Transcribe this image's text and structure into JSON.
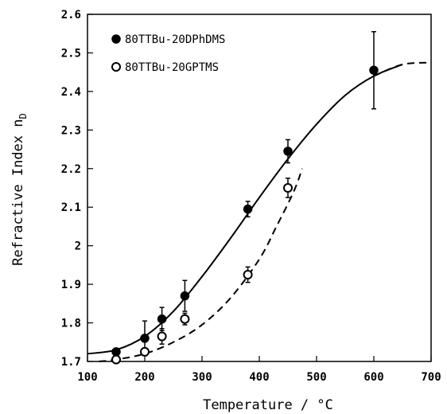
{
  "chart_data": {
    "type": "scatter",
    "xlabel": "Temperature / °C",
    "ylabel": "Refractive Index n",
    "ylabel_subscript": "D",
    "xlim": [
      100,
      700
    ],
    "ylim": [
      1.7,
      2.6
    ],
    "xticks": [
      100,
      200,
      300,
      400,
      500,
      600,
      700
    ],
    "yticks": [
      1.7,
      1.8,
      1.9,
      2.0,
      2.1,
      2.2,
      2.3,
      2.4,
      2.5,
      2.6
    ],
    "ytick_labels": [
      "1.7",
      "1.8",
      "1.9",
      "2",
      "2.1",
      "2.2",
      "2.3",
      "2.4",
      "2.5",
      "2.6"
    ],
    "xtick_labels": [
      "100",
      "200",
      "300",
      "400",
      "500",
      "600",
      "700"
    ],
    "legend_position": "top-left",
    "series": [
      {
        "name": "80TTBu-20DPhDMS",
        "marker": "filled-circle",
        "fit_line": "solid",
        "color": "#000000",
        "points": [
          {
            "x": 150,
            "y": 1.725,
            "err": 0.005
          },
          {
            "x": 200,
            "y": 1.76,
            "err": 0.045
          },
          {
            "x": 230,
            "y": 1.81,
            "err": 0.03
          },
          {
            "x": 270,
            "y": 1.87,
            "err": 0.04
          },
          {
            "x": 380,
            "y": 2.095,
            "err": 0.02
          },
          {
            "x": 450,
            "y": 2.245,
            "err": 0.03
          },
          {
            "x": 600,
            "y": 2.455,
            "err": 0.1
          }
        ],
        "fit": [
          {
            "x": 100,
            "y": 1.72
          },
          {
            "x": 150,
            "y": 1.73
          },
          {
            "x": 200,
            "y": 1.765
          },
          {
            "x": 250,
            "y": 1.83
          },
          {
            "x": 300,
            "y": 1.92
          },
          {
            "x": 350,
            "y": 2.02
          },
          {
            "x": 400,
            "y": 2.125
          },
          {
            "x": 450,
            "y": 2.225
          },
          {
            "x": 500,
            "y": 2.315
          },
          {
            "x": 550,
            "y": 2.39
          },
          {
            "x": 600,
            "y": 2.44
          },
          {
            "x": 650,
            "y": 2.47
          },
          {
            "x": 700,
            "y": 2.475
          }
        ],
        "fit_dashed_from": 620
      },
      {
        "name": "80TTBu-20GPTMS",
        "marker": "open-circle",
        "fit_line": "dashed",
        "color": "#000000",
        "points": [
          {
            "x": 150,
            "y": 1.705,
            "err": 0.005
          },
          {
            "x": 200,
            "y": 1.725,
            "err": 0.01
          },
          {
            "x": 230,
            "y": 1.765,
            "err": 0.02
          },
          {
            "x": 270,
            "y": 1.81,
            "err": 0.015
          },
          {
            "x": 380,
            "y": 1.925,
            "err": 0.02
          },
          {
            "x": 450,
            "y": 2.15,
            "err": 0.025
          }
        ],
        "fit": [
          {
            "x": 120,
            "y": 1.7
          },
          {
            "x": 150,
            "y": 1.705
          },
          {
            "x": 200,
            "y": 1.72
          },
          {
            "x": 250,
            "y": 1.75
          },
          {
            "x": 300,
            "y": 1.795
          },
          {
            "x": 350,
            "y": 1.865
          },
          {
            "x": 400,
            "y": 1.965
          },
          {
            "x": 430,
            "y": 2.05
          },
          {
            "x": 460,
            "y": 2.14
          },
          {
            "x": 475,
            "y": 2.2
          }
        ]
      }
    ]
  }
}
